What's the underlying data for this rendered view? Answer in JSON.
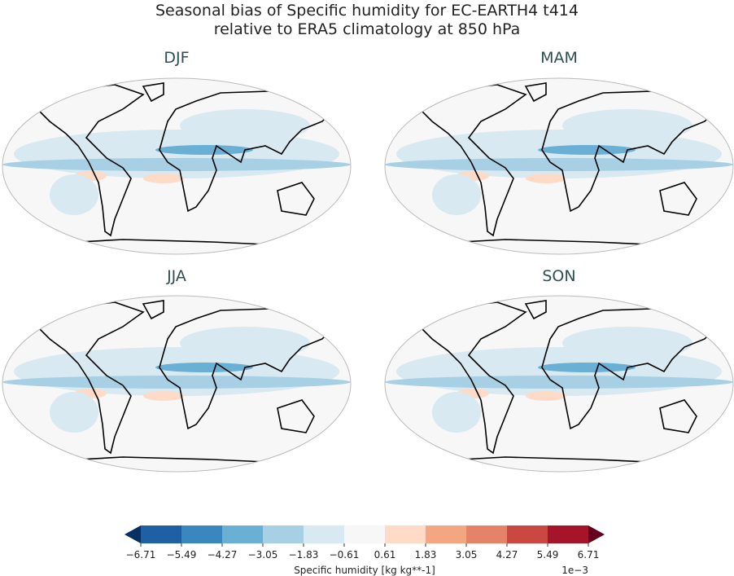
{
  "title_line1": "Seasonal bias of Specific humidity for EC-EARTH4 t414",
  "title_line2": "relative to ERA5 climatology at 850 hPa",
  "panels": [
    {
      "season": "DJF"
    },
    {
      "season": "MAM"
    },
    {
      "season": "JJA"
    },
    {
      "season": "SON"
    }
  ],
  "colorbar": {
    "label": "Specific humidity [kg kg**-1]",
    "multiplier": "1e−3",
    "ticks": [
      "−6.71",
      "−5.49",
      "−4.27",
      "−3.05",
      "−1.83",
      "−0.61",
      "0.61",
      "1.83",
      "3.05",
      "4.27",
      "5.49",
      "6.71"
    ],
    "colors": [
      "#1f5fa3",
      "#3a87c0",
      "#6aafd4",
      "#a7d0e4",
      "#d8e9f1",
      "#f7f7f7",
      "#fddbc7",
      "#f4a582",
      "#e58267",
      "#cb4741",
      "#a51428"
    ],
    "extend_low_color": "#053061",
    "extend_high_color": "#67001f"
  }
}
